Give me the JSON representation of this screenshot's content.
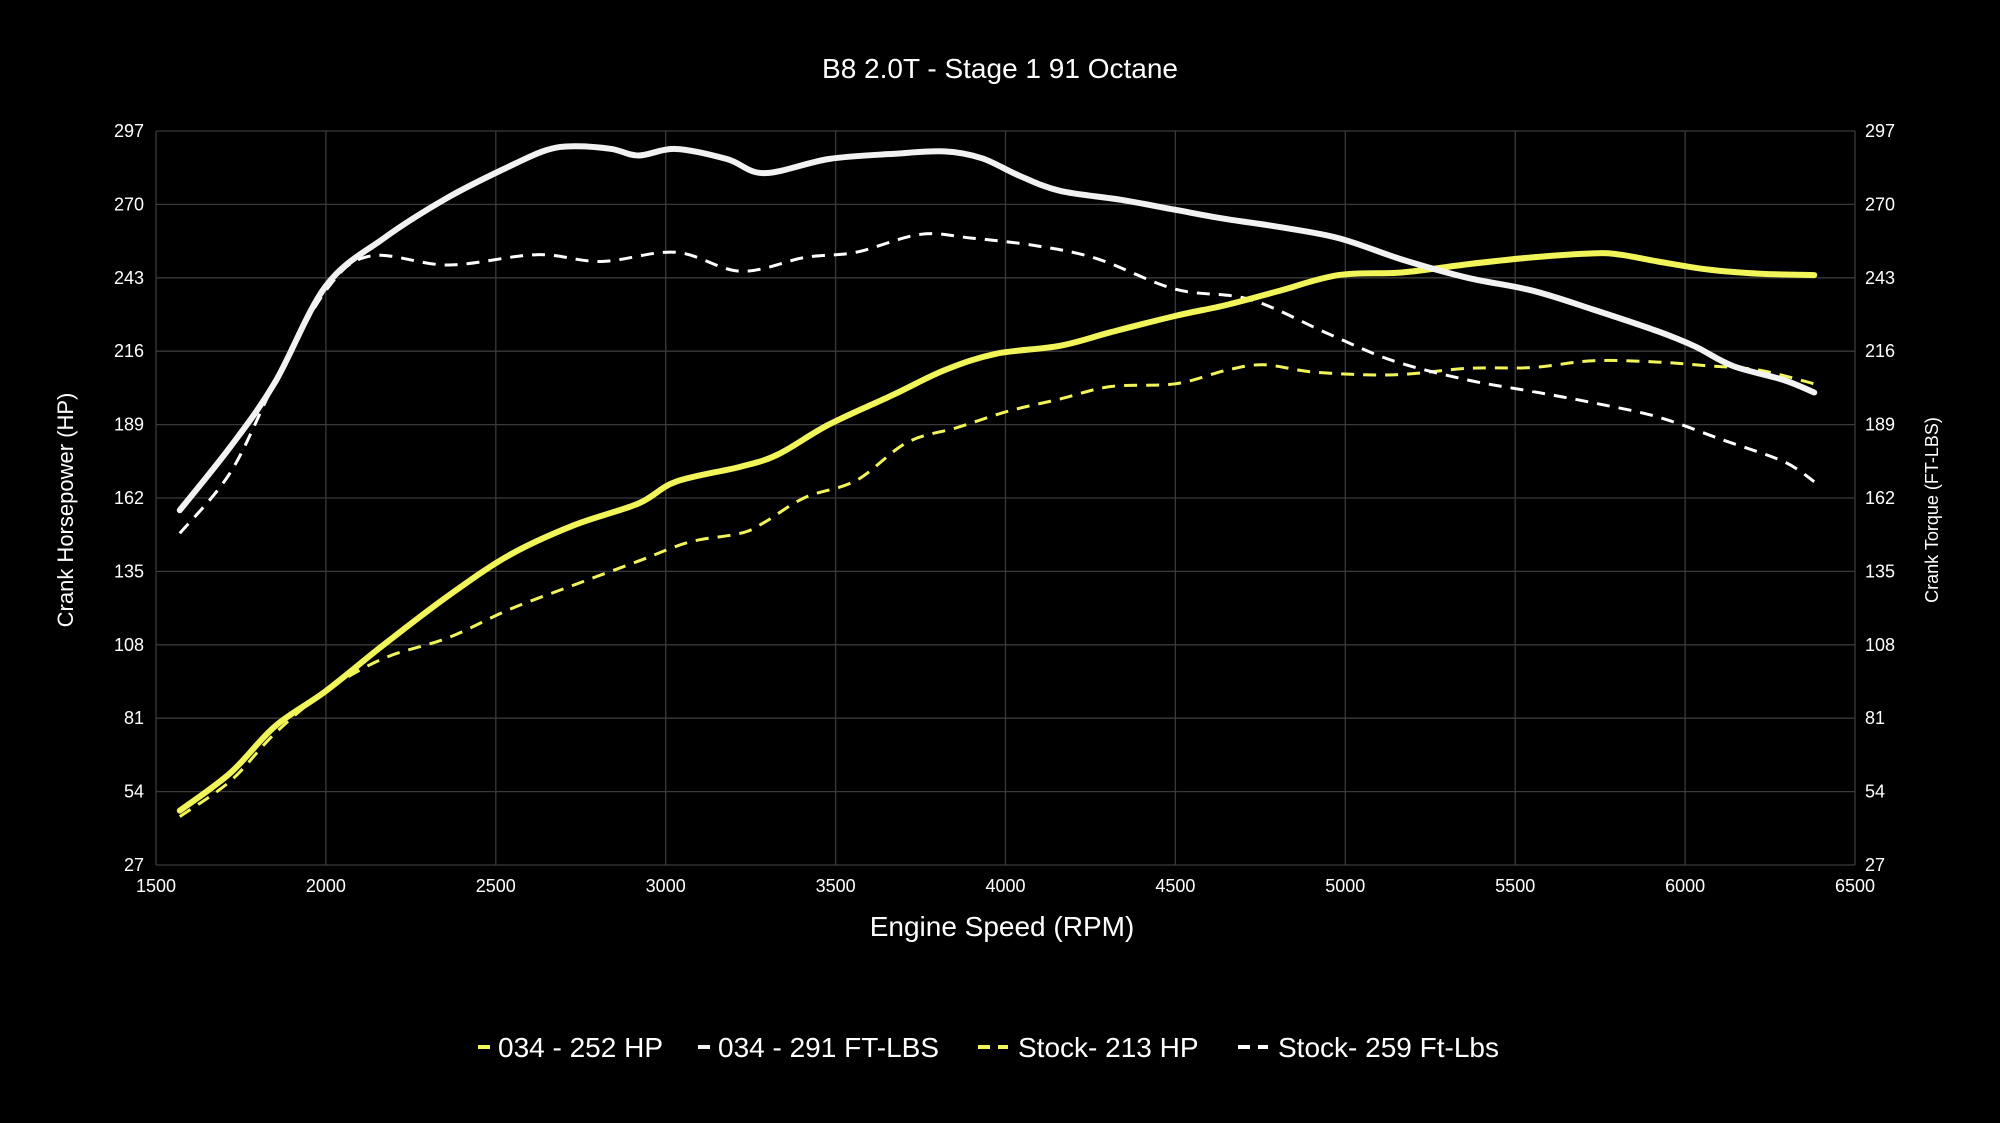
{
  "chart_data": {
    "type": "line",
    "title": "B8 2.0T - Stage 1 91 Octane",
    "xlabel": "Engine Speed (RPM)",
    "ylabel": "Crank Horsepower (HP)",
    "ylabel_right": "Crank Torque (FT-LBS)",
    "xlim": [
      1500,
      6500
    ],
    "ylim": [
      27,
      297
    ],
    "x_ticks": [
      "1500",
      "2000",
      "2500",
      "3000",
      "3500",
      "4000",
      "4500",
      "5000",
      "5500",
      "6000",
      "6500"
    ],
    "y_ticks": [
      "27",
      "54",
      "81",
      "108",
      "135",
      "162",
      "189",
      "216",
      "243",
      "270",
      "297"
    ],
    "grid": true,
    "legend_position": "bottom",
    "background": "#000000",
    "series": [
      {
        "name": "034 - 252 HP",
        "color": "#f2f55a",
        "dashed": false,
        "points": [
          [
            1570,
            47
          ],
          [
            1720,
            61
          ],
          [
            1850,
            78
          ],
          [
            2000,
            91
          ],
          [
            2170,
            108
          ],
          [
            2360,
            126
          ],
          [
            2540,
            141
          ],
          [
            2730,
            152
          ],
          [
            2920,
            160
          ],
          [
            3030,
            168
          ],
          [
            3220,
            173.5
          ],
          [
            3330,
            178
          ],
          [
            3480,
            189
          ],
          [
            3670,
            200
          ],
          [
            3820,
            209
          ],
          [
            3970,
            215
          ],
          [
            4160,
            218
          ],
          [
            4310,
            223
          ],
          [
            4500,
            229
          ],
          [
            4650,
            233
          ],
          [
            4800,
            238
          ],
          [
            4980,
            244
          ],
          [
            5170,
            245
          ],
          [
            5360,
            248
          ],
          [
            5550,
            250.5
          ],
          [
            5730,
            252
          ],
          [
            5810,
            251.5
          ],
          [
            5920,
            249
          ],
          [
            6070,
            246
          ],
          [
            6220,
            244.5
          ],
          [
            6380,
            244
          ]
        ]
      },
      {
        "name": "034 - 291 FT-LBS",
        "color": "#f2f2f2",
        "dashed": false,
        "points": [
          [
            1570,
            157.5
          ],
          [
            1720,
            181
          ],
          [
            1850,
            204.5
          ],
          [
            2000,
            240
          ],
          [
            2170,
            257.5
          ],
          [
            2360,
            272.6
          ],
          [
            2540,
            284
          ],
          [
            2650,
            290
          ],
          [
            2730,
            291.4
          ],
          [
            2840,
            290.4
          ],
          [
            2920,
            288
          ],
          [
            3030,
            290.4
          ],
          [
            3180,
            286.7
          ],
          [
            3290,
            281.5
          ],
          [
            3480,
            286.7
          ],
          [
            3670,
            288.6
          ],
          [
            3820,
            289.5
          ],
          [
            3930,
            287
          ],
          [
            4040,
            280.6
          ],
          [
            4160,
            275
          ],
          [
            4340,
            271.7
          ],
          [
            4500,
            268
          ],
          [
            4650,
            264.6
          ],
          [
            4800,
            261.8
          ],
          [
            4980,
            257.6
          ],
          [
            5170,
            249.6
          ],
          [
            5360,
            243
          ],
          [
            5550,
            238.3
          ],
          [
            5730,
            231.3
          ],
          [
            5920,
            223.3
          ],
          [
            6030,
            217.7
          ],
          [
            6140,
            210.6
          ],
          [
            6290,
            205.4
          ],
          [
            6380,
            200.8
          ]
        ]
      },
      {
        "name": "Stock- 213 HP",
        "color": "#f2f55a",
        "dashed": true,
        "points": [
          [
            1570,
            44.8
          ],
          [
            1720,
            58
          ],
          [
            1850,
            75.4
          ],
          [
            2000,
            91
          ],
          [
            2170,
            103
          ],
          [
            2360,
            110.6
          ],
          [
            2540,
            121
          ],
          [
            2730,
            130
          ],
          [
            2920,
            138.8
          ],
          [
            3070,
            145.8
          ],
          [
            3220,
            149
          ],
          [
            3290,
            153
          ],
          [
            3410,
            162.2
          ],
          [
            3560,
            168.4
          ],
          [
            3710,
            182.4
          ],
          [
            3860,
            188
          ],
          [
            4010,
            194
          ],
          [
            4160,
            198.4
          ],
          [
            4310,
            203
          ],
          [
            4500,
            204
          ],
          [
            4650,
            209
          ],
          [
            4760,
            211
          ],
          [
            4910,
            208.3
          ],
          [
            5140,
            207.3
          ],
          [
            5360,
            209.7
          ],
          [
            5550,
            210
          ],
          [
            5730,
            212.5
          ],
          [
            5920,
            212
          ],
          [
            6070,
            210.6
          ],
          [
            6220,
            209
          ],
          [
            6380,
            204
          ]
        ]
      },
      {
        "name": "Stock- 259 Ft-Lbs",
        "color": "#ffffff",
        "dashed": true,
        "points": [
          [
            1570,
            149
          ],
          [
            1720,
            171.6
          ],
          [
            1850,
            204.5
          ],
          [
            2000,
            238.3
          ],
          [
            2130,
            251
          ],
          [
            2360,
            247.7
          ],
          [
            2620,
            251.5
          ],
          [
            2810,
            249
          ],
          [
            3030,
            252.4
          ],
          [
            3220,
            245.4
          ],
          [
            3410,
            250.5
          ],
          [
            3560,
            252.4
          ],
          [
            3750,
            259
          ],
          [
            3900,
            257.6
          ],
          [
            4090,
            254.8
          ],
          [
            4270,
            250
          ],
          [
            4500,
            238.8
          ],
          [
            4720,
            235
          ],
          [
            4950,
            222.4
          ],
          [
            5140,
            212.5
          ],
          [
            5360,
            205.4
          ],
          [
            5550,
            201.2
          ],
          [
            5730,
            197
          ],
          [
            5920,
            191.8
          ],
          [
            6110,
            183.4
          ],
          [
            6290,
            175.4
          ],
          [
            6380,
            168
          ]
        ]
      }
    ]
  }
}
